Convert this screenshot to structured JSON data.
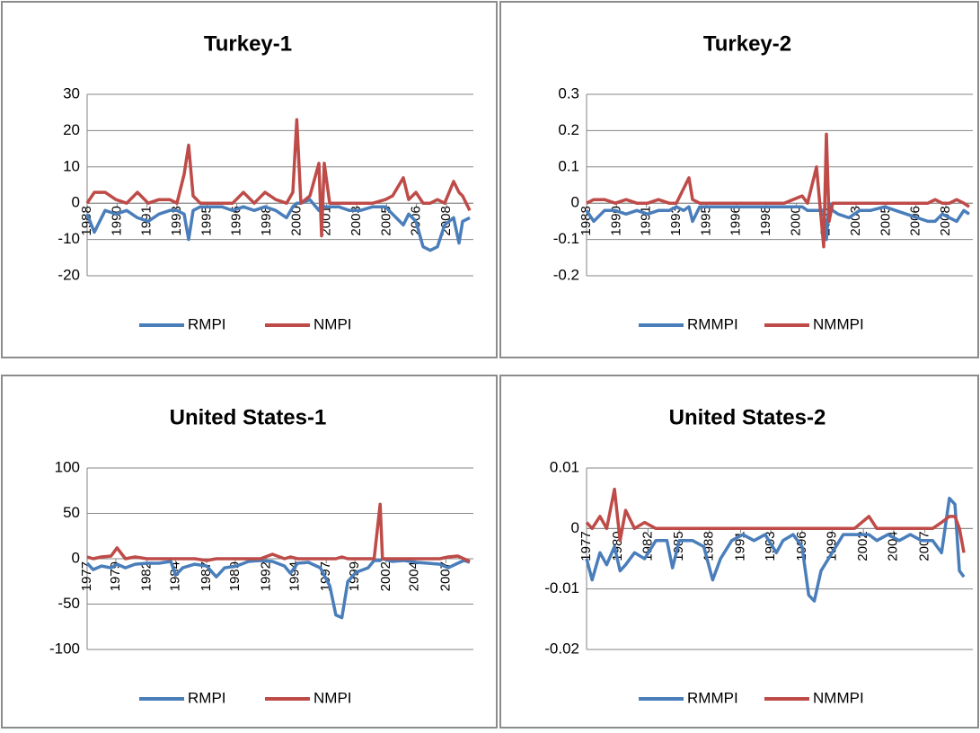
{
  "chart_data": [
    {
      "type": "line",
      "title": "Turkey-1",
      "x": [
        1988.0,
        1988.4,
        1989.0,
        1989.6,
        1990.2,
        1990.8,
        1991.4,
        1992.0,
        1992.6,
        1993.0,
        1993.4,
        1993.65,
        1993.9,
        1994.3,
        1994.9,
        1995.5,
        1996.1,
        1996.7,
        1997.3,
        1997.9,
        1998.5,
        1999.1,
        1999.45,
        1999.67,
        1999.9,
        2000.4,
        2000.9,
        2001.05,
        2001.2,
        2001.5,
        2002.0,
        2002.6,
        2003.2,
        2003.9,
        2004.6,
        2005.0,
        2005.6,
        2005.9,
        2006.3,
        2006.7,
        2007.1,
        2007.5,
        2007.9,
        2008.4,
        2008.7,
        2008.9,
        2009.3
      ],
      "series": [
        {
          "name": "RMPI",
          "color": "#4a7ebb",
          "values": [
            -3,
            -8,
            -2,
            -3,
            -2,
            -4,
            -5,
            -3,
            -2,
            -2,
            -3,
            -10,
            -2,
            -1,
            -1,
            -1,
            -2,
            -1,
            -2,
            -1,
            -2,
            -4,
            -1,
            0,
            0,
            1,
            -2,
            0,
            -1,
            -1,
            -1,
            -2,
            -2,
            -1,
            -1,
            -3,
            -6,
            -3,
            -5,
            -12,
            -13,
            -12,
            -6,
            -4,
            -11,
            -5,
            -4
          ]
        },
        {
          "name": "NMPI",
          "color": "#be4b48",
          "values": [
            0,
            3,
            3,
            1,
            0,
            3,
            0,
            1,
            1,
            0,
            8,
            16,
            2,
            0,
            0,
            0,
            0,
            3,
            0,
            3,
            1,
            0,
            3,
            23,
            0,
            2,
            11,
            -9,
            11,
            0,
            0,
            0,
            0,
            0,
            1,
            2,
            7,
            1,
            3,
            0,
            0,
            1,
            0,
            6,
            3,
            2,
            -2
          ]
        }
      ],
      "xlim": [
        1988,
        2009.5
      ],
      "xticks": [
        1988,
        {
          "value": 1989.67,
          "label": "1990"
        },
        {
          "value": 1991.33,
          "label": "1991"
        },
        1993,
        {
          "value": 1994.67,
          "label": "1995"
        },
        {
          "value": 1996.33,
          "label": "1996"
        },
        1998,
        {
          "value": 1999.67,
          "label": "2000"
        },
        {
          "value": 2001.33,
          "label": "2001"
        },
        2003,
        {
          "value": 2004.67,
          "label": "2005"
        },
        {
          "value": 2006.33,
          "label": "2006"
        },
        2008
      ],
      "ylim": [
        -20,
        30
      ],
      "yticks": [
        30,
        20,
        10,
        0,
        -10,
        -20
      ],
      "grid": true,
      "legend": "bottom"
    },
    {
      "type": "line",
      "title": "Turkey-2",
      "x": [
        1988.0,
        1988.4,
        1989.0,
        1989.6,
        1990.2,
        1990.8,
        1991.4,
        1992.0,
        1992.6,
        1993.0,
        1993.4,
        1993.7,
        1993.9,
        1994.3,
        1995.0,
        1996.0,
        1997.0,
        1998.0,
        1999.0,
        2000.0,
        2000.3,
        2000.8,
        2001.2,
        2001.35,
        2001.5,
        2001.7,
        2002.0,
        2002.6,
        2003.2,
        2003.8,
        2004.6,
        2005.2,
        2005.8,
        2006.4,
        2007.0,
        2007.4,
        2007.8,
        2008.2,
        2008.6,
        2009.0,
        2009.3
      ],
      "series": [
        {
          "name": "RMMPI",
          "color": "#4a7ebb",
          "values": [
            -0.02,
            -0.05,
            -0.02,
            -0.02,
            -0.03,
            -0.02,
            -0.03,
            -0.02,
            -0.02,
            -0.01,
            -0.02,
            -0.01,
            -0.05,
            -0.01,
            -0.01,
            -0.01,
            -0.01,
            -0.01,
            -0.01,
            -0.01,
            -0.02,
            -0.02,
            -0.02,
            -0.1,
            0,
            -0.02,
            -0.03,
            -0.04,
            -0.02,
            -0.02,
            -0.01,
            -0.02,
            -0.03,
            -0.04,
            -0.05,
            -0.05,
            -0.03,
            -0.04,
            -0.05,
            -0.02,
            -0.03
          ]
        },
        {
          "name": "NMMPI",
          "color": "#be4b48",
          "values": [
            0,
            0.01,
            0.01,
            0,
            0.01,
            0,
            0,
            0.01,
            0,
            0,
            0.04,
            0.07,
            0.01,
            0,
            0,
            0,
            0,
            0,
            0,
            0.02,
            0,
            0.1,
            -0.12,
            0.19,
            -0.05,
            0,
            0,
            0,
            0,
            0,
            0,
            0,
            0,
            0,
            0,
            0.01,
            0,
            0,
            0.01,
            0,
            -0.01
          ]
        }
      ],
      "xlim": [
        1988,
        2009.5
      ],
      "xticks": [
        1988,
        {
          "value": 1989.67,
          "label": "1990"
        },
        {
          "value": 1991.33,
          "label": "1991"
        },
        1993,
        {
          "value": 1994.67,
          "label": "1995"
        },
        {
          "value": 1996.33,
          "label": "1996"
        },
        1998,
        {
          "value": 1999.67,
          "label": "2000"
        },
        {
          "value": 2001.33,
          "label": "2001"
        },
        2003,
        {
          "value": 2004.67,
          "label": "2005"
        },
        {
          "value": 2006.33,
          "label": "2006"
        },
        2008
      ],
      "ylim": [
        -0.2,
        0.3
      ],
      "yticks": [
        0.3,
        0.2,
        0.1,
        0,
        -0.1,
        -0.2
      ],
      "grid": true,
      "legend": "bottom"
    },
    {
      "type": "line",
      "title": "United States-1",
      "x": [
        1977.0,
        1977.5,
        1978.2,
        1979.0,
        1979.5,
        1980.2,
        1981.0,
        1982.0,
        1983.0,
        1984.0,
        1984.4,
        1985.0,
        1986.0,
        1987.0,
        1987.8,
        1988.5,
        1989.5,
        1990.5,
        1991.5,
        1992.5,
        1993.5,
        1994.0,
        1994.6,
        1995.5,
        1996.5,
        1997.3,
        1997.8,
        1998.3,
        1998.8,
        1999.5,
        2000.5,
        2001.0,
        2001.5,
        2001.7,
        2002.5,
        2003.5,
        2004.5,
        2005.5,
        2006.5,
        2007.2,
        2008.0,
        2008.5,
        2009.0
      ],
      "series": [
        {
          "name": "RMPI",
          "color": "#4a7ebb",
          "values": [
            -5,
            -12,
            -8,
            -10,
            -6,
            -10,
            -6,
            -5,
            -5,
            -3,
            -18,
            -10,
            -6,
            -8,
            -20,
            -10,
            -8,
            -3,
            -2,
            -3,
            -8,
            -16,
            -5,
            -4,
            -10,
            -30,
            -62,
            -65,
            -25,
            -15,
            -10,
            -2,
            -2,
            0,
            -3,
            -2,
            -4,
            -5,
            -6,
            -10,
            -5,
            -2,
            -4
          ]
        },
        {
          "name": "NMPI",
          "color": "#be4b48",
          "values": [
            2,
            0,
            2,
            3,
            12,
            0,
            2,
            0,
            0,
            0,
            0,
            0,
            0,
            -2,
            0,
            0,
            0,
            0,
            0,
            5,
            0,
            2,
            0,
            0,
            0,
            0,
            0,
            2,
            0,
            0,
            0,
            0,
            60,
            0,
            0,
            0,
            0,
            0,
            0,
            2,
            3,
            0,
            -3
          ]
        }
      ],
      "xlim": [
        1977,
        2009.3
      ],
      "xticks": [
        1977,
        {
          "value": 1979.4,
          "label": "1979"
        },
        1982,
        {
          "value": 1984.4,
          "label": "1984"
        },
        1987,
        {
          "value": 1989.4,
          "label": "1989"
        },
        1992,
        {
          "value": 1994.4,
          "label": "1994"
        },
        1997,
        {
          "value": 1999.4,
          "label": "1999"
        },
        2002,
        {
          "value": 2004.4,
          "label": "2004"
        },
        2007
      ],
      "ylim": [
        -100,
        100
      ],
      "yticks": [
        100,
        50,
        0,
        -50,
        -100
      ],
      "grid": true,
      "legend": "bottom"
    },
    {
      "type": "line",
      "title": "United States-2",
      "x": [
        1977.0,
        1977.5,
        1978.2,
        1978.8,
        1979.5,
        1980.0,
        1980.5,
        1981.3,
        1982.2,
        1983.2,
        1984.2,
        1984.7,
        1985.3,
        1986.5,
        1987.5,
        1988.3,
        1989.0,
        1990.0,
        1991.0,
        1992.0,
        1993.0,
        1994.0,
        1994.6,
        1995.5,
        1996.3,
        1996.9,
        1997.4,
        1998.0,
        1999.0,
        2000.0,
        2001.0,
        2002.3,
        2003.0,
        2004.0,
        2005.0,
        2006.0,
        2007.0,
        2008.0,
        2008.8,
        2009.5,
        2010.0,
        2010.4,
        2010.8
      ],
      "series": [
        {
          "name": "RMMPI",
          "color": "#4a7ebb",
          "values": [
            -0.005,
            -0.0085,
            -0.004,
            -0.006,
            -0.003,
            -0.007,
            -0.006,
            -0.004,
            -0.005,
            -0.002,
            -0.002,
            -0.0065,
            -0.002,
            -0.002,
            -0.003,
            -0.0085,
            -0.005,
            -0.002,
            -0.001,
            -0.002,
            -0.001,
            -0.004,
            -0.002,
            -0.001,
            -0.003,
            -0.011,
            -0.012,
            -0.007,
            -0.004,
            -0.001,
            -0.001,
            -0.001,
            -0.002,
            -0.001,
            -0.002,
            -0.001,
            -0.002,
            -0.002,
            -0.004,
            0.005,
            0.004,
            -0.007,
            -0.008
          ]
        },
        {
          "name": "NMMPI",
          "color": "#be4b48",
          "values": [
            0.001,
            0,
            0.002,
            0,
            0.0065,
            -0.002,
            0.003,
            0,
            0.001,
            0,
            0,
            0,
            0,
            0,
            0,
            0,
            0,
            0,
            0,
            0,
            0,
            0,
            0,
            0,
            0,
            0,
            0,
            0,
            0,
            0,
            0,
            0.002,
            0,
            0,
            0,
            0,
            0,
            0,
            0.001,
            0.002,
            0.002,
            0,
            -0.004
          ]
        }
      ],
      "xlim": [
        1977,
        2011.6
      ],
      "xticks": [
        1977,
        {
          "value": 1979.8,
          "label": "1980"
        },
        {
          "value": 1982.5,
          "label": "1982"
        },
        {
          "value": 1985.3,
          "label": "1985"
        },
        1988,
        {
          "value": 1990.8,
          "label": "1991"
        },
        {
          "value": 1993.5,
          "label": "1993"
        },
        {
          "value": 1996.3,
          "label": "1996"
        },
        1999,
        {
          "value": 2001.8,
          "label": "2002"
        },
        {
          "value": 2004.5,
          "label": "2004"
        },
        {
          "value": 2007.3,
          "label": "2007"
        }
      ],
      "ylim": [
        -0.02,
        0.01
      ],
      "yticks": [
        0.01,
        0,
        -0.01,
        -0.02
      ],
      "grid": true,
      "legend": "bottom"
    }
  ]
}
